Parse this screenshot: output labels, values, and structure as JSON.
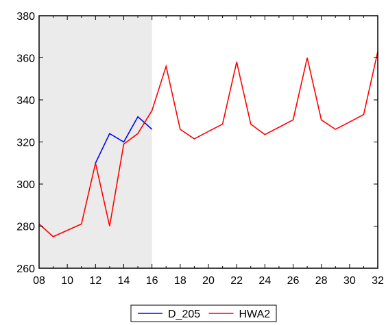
{
  "chart_data": {
    "type": "line",
    "x_tick_labels": [
      "08",
      "10",
      "12",
      "14",
      "16",
      "18",
      "20",
      "22",
      "24",
      "26",
      "28",
      "30",
      "32"
    ],
    "x_ticks": [
      8,
      10,
      12,
      14,
      16,
      18,
      20,
      22,
      24,
      26,
      28,
      30,
      32
    ],
    "xlim": [
      8,
      32
    ],
    "y_ticks": [
      260,
      280,
      300,
      320,
      340,
      360,
      380
    ],
    "ylim": [
      260,
      380
    ],
    "shaded_region": [
      8,
      16
    ],
    "grid": false,
    "legend_position": "bottom",
    "series": [
      {
        "name": "D_205",
        "color": "#0000ff",
        "x": [
          12,
          13,
          14,
          15,
          16
        ],
        "values": [
          310,
          324,
          320,
          332,
          326
        ]
      },
      {
        "name": "HWA2",
        "color": "#ff0000",
        "x": [
          8,
          9,
          10,
          11,
          12,
          13,
          14,
          15,
          16,
          17,
          18,
          19,
          20,
          21,
          22,
          23,
          24,
          25,
          26,
          27,
          28,
          29,
          30,
          31,
          32
        ],
        "values": [
          281,
          275,
          278,
          281,
          310,
          280,
          319,
          324,
          335,
          356,
          326,
          321.5,
          325,
          328.5,
          358,
          328.5,
          323.5,
          327,
          330.5,
          360,
          330.5,
          326,
          329.5,
          333,
          363
        ]
      }
    ]
  }
}
